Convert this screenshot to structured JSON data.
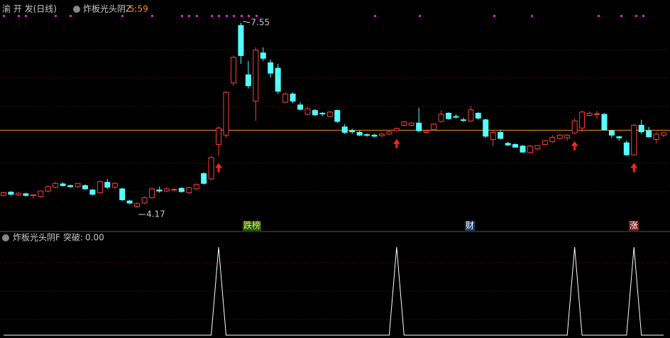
{
  "chart_data": [
    {
      "type": "candlestick",
      "title": "渝 开 发(日线)",
      "indicator_name": "炸板光头阴Z :",
      "indicator_value": 5.59,
      "high_label": 7.55,
      "low_label": 4.17,
      "up_color": "#ff3c3c",
      "down_color": "#54ffff",
      "line_color": "#ff8c1a",
      "tags": [
        "跌榜",
        "财",
        "涨"
      ],
      "ohlc": [
        [
          4.4,
          4.47,
          4.38,
          4.45
        ],
        [
          4.46,
          4.48,
          4.4,
          4.42
        ],
        [
          4.41,
          4.46,
          4.39,
          4.44
        ],
        [
          4.43,
          4.45,
          4.38,
          4.4
        ],
        [
          4.4,
          4.42,
          4.34,
          4.41
        ],
        [
          4.38,
          4.49,
          4.36,
          4.48
        ],
        [
          4.48,
          4.58,
          4.45,
          4.56
        ],
        [
          4.55,
          4.65,
          4.53,
          4.62
        ],
        [
          4.61,
          4.64,
          4.56,
          4.58
        ],
        [
          4.58,
          4.6,
          4.54,
          4.56
        ],
        [
          4.56,
          4.63,
          4.54,
          4.62
        ],
        [
          4.58,
          4.6,
          4.5,
          4.52
        ],
        [
          4.5,
          4.52,
          4.4,
          4.42
        ],
        [
          4.45,
          4.68,
          4.43,
          4.65
        ],
        [
          4.64,
          4.7,
          4.52,
          4.55
        ],
        [
          4.55,
          4.64,
          4.52,
          4.62
        ],
        [
          4.52,
          4.54,
          4.3,
          4.32
        ],
        [
          4.3,
          4.32,
          4.24,
          4.26
        ],
        [
          4.2,
          4.28,
          4.17,
          4.25
        ],
        [
          4.26,
          4.38,
          4.24,
          4.36
        ],
        [
          4.36,
          4.54,
          4.34,
          4.52
        ],
        [
          4.5,
          4.56,
          4.45,
          4.48
        ],
        [
          4.48,
          4.55,
          4.46,
          4.52
        ],
        [
          4.5,
          4.53,
          4.48,
          4.51
        ],
        [
          4.53,
          4.55,
          4.45,
          4.47
        ],
        [
          4.45,
          4.56,
          4.43,
          4.54
        ],
        [
          4.52,
          4.62,
          4.5,
          4.6
        ],
        [
          4.8,
          4.82,
          4.6,
          4.62
        ],
        [
          4.7,
          5.12,
          4.68,
          5.09
        ],
        [
          5.33,
          5.66,
          5.12,
          5.63
        ],
        [
          5.5,
          6.3,
          5.45,
          6.28
        ],
        [
          6.45,
          6.95,
          6.4,
          6.92
        ],
        [
          7.5,
          7.55,
          6.8,
          6.95
        ],
        [
          6.6,
          6.85,
          6.35,
          6.4
        ],
        [
          6.12,
          7.1,
          5.76,
          7.05
        ],
        [
          7.0,
          7.1,
          6.85,
          6.9
        ],
        [
          6.82,
          6.88,
          6.55,
          6.63
        ],
        [
          6.72,
          6.8,
          6.25,
          6.3
        ],
        [
          6.1,
          6.28,
          6.08,
          6.25
        ],
        [
          6.25,
          6.28,
          6.08,
          6.12
        ],
        [
          6.05,
          6.1,
          5.95,
          5.97
        ],
        [
          5.88,
          6.02,
          5.86,
          5.98
        ],
        [
          5.95,
          5.98,
          5.85,
          5.87
        ],
        [
          5.9,
          5.92,
          5.85,
          5.89
        ],
        [
          5.84,
          5.94,
          5.82,
          5.92
        ],
        [
          5.95,
          5.97,
          5.72,
          5.75
        ],
        [
          5.65,
          5.7,
          5.52,
          5.55
        ],
        [
          5.58,
          5.62,
          5.52,
          5.56
        ],
        [
          5.55,
          5.58,
          5.48,
          5.5
        ],
        [
          5.51,
          5.53,
          5.47,
          5.5
        ],
        [
          5.5,
          5.52,
          5.46,
          5.48
        ],
        [
          5.49,
          5.54,
          5.47,
          5.52
        ],
        [
          5.52,
          5.58,
          5.5,
          5.56
        ],
        [
          5.58,
          5.64,
          5.56,
          5.62
        ],
        [
          5.68,
          5.76,
          5.66,
          5.74
        ],
        [
          5.68,
          5.74,
          5.66,
          5.72
        ],
        [
          5.72,
          6.0,
          5.55,
          5.58
        ],
        [
          5.55,
          5.6,
          5.53,
          5.58
        ],
        [
          5.6,
          5.72,
          5.58,
          5.7
        ],
        [
          5.75,
          5.95,
          5.73,
          5.88
        ],
        [
          5.9,
          5.92,
          5.78,
          5.8
        ],
        [
          5.84,
          5.88,
          5.8,
          5.83
        ],
        [
          5.78,
          5.82,
          5.74,
          5.77
        ],
        [
          5.76,
          6.02,
          5.74,
          5.96
        ],
        [
          5.9,
          5.92,
          5.78,
          5.81
        ],
        [
          5.78,
          5.8,
          5.45,
          5.48
        ],
        [
          5.42,
          5.58,
          5.3,
          5.55
        ],
        [
          5.55,
          5.6,
          5.42,
          5.44
        ],
        [
          5.35,
          5.38,
          5.3,
          5.32
        ],
        [
          5.33,
          5.35,
          5.27,
          5.28
        ],
        [
          5.3,
          5.32,
          5.18,
          5.19
        ],
        [
          5.18,
          5.32,
          5.16,
          5.3
        ],
        [
          5.25,
          5.32,
          5.22,
          5.31
        ],
        [
          5.33,
          5.42,
          5.31,
          5.4
        ],
        [
          5.38,
          5.5,
          5.36,
          5.46
        ],
        [
          5.44,
          5.52,
          5.42,
          5.5
        ],
        [
          5.45,
          5.52,
          5.4,
          5.5
        ],
        [
          5.54,
          5.8,
          5.52,
          5.76
        ],
        [
          5.63,
          5.95,
          5.55,
          5.92
        ],
        [
          5.86,
          5.93,
          5.84,
          5.9
        ],
        [
          5.88,
          5.94,
          5.8,
          5.89
        ],
        [
          5.88,
          5.9,
          5.58,
          5.6
        ],
        [
          5.58,
          5.6,
          5.45,
          5.5
        ],
        [
          5.47,
          5.49,
          5.4,
          5.45
        ],
        [
          5.36,
          5.4,
          5.12,
          5.14
        ],
        [
          5.14,
          5.7,
          5.12,
          5.68
        ],
        [
          5.68,
          5.78,
          5.52,
          5.56
        ],
        [
          5.58,
          5.65,
          5.45,
          5.47
        ],
        [
          5.42,
          5.55,
          5.35,
          5.52
        ],
        [
          5.5,
          5.56,
          5.46,
          5.54
        ]
      ]
    },
    {
      "type": "line",
      "title": "炸板光头阴F",
      "value_name": "突破:",
      "current": {
        "value": 0,
        "label": "0.00"
      },
      "color": "#ffffff",
      "values": [
        0,
        0,
        0,
        0,
        0,
        0,
        0,
        0,
        0,
        0,
        0,
        0,
        0,
        0,
        0,
        0,
        0,
        0,
        0,
        0,
        0,
        0,
        0,
        0,
        0,
        0,
        0,
        0,
        0,
        1,
        0,
        0,
        0,
        0,
        0,
        0,
        0,
        0,
        0,
        0,
        0,
        0,
        0,
        0,
        0,
        0,
        0,
        0,
        0,
        0,
        0,
        0,
        0,
        1,
        0,
        0,
        0,
        0,
        0,
        0,
        0,
        0,
        0,
        0,
        0,
        0,
        0,
        0,
        0,
        0,
        0,
        0,
        0,
        0,
        0,
        0,
        0,
        1,
        0,
        0,
        0,
        0,
        0,
        0,
        0,
        1,
        0,
        0,
        0,
        0
      ]
    }
  ]
}
